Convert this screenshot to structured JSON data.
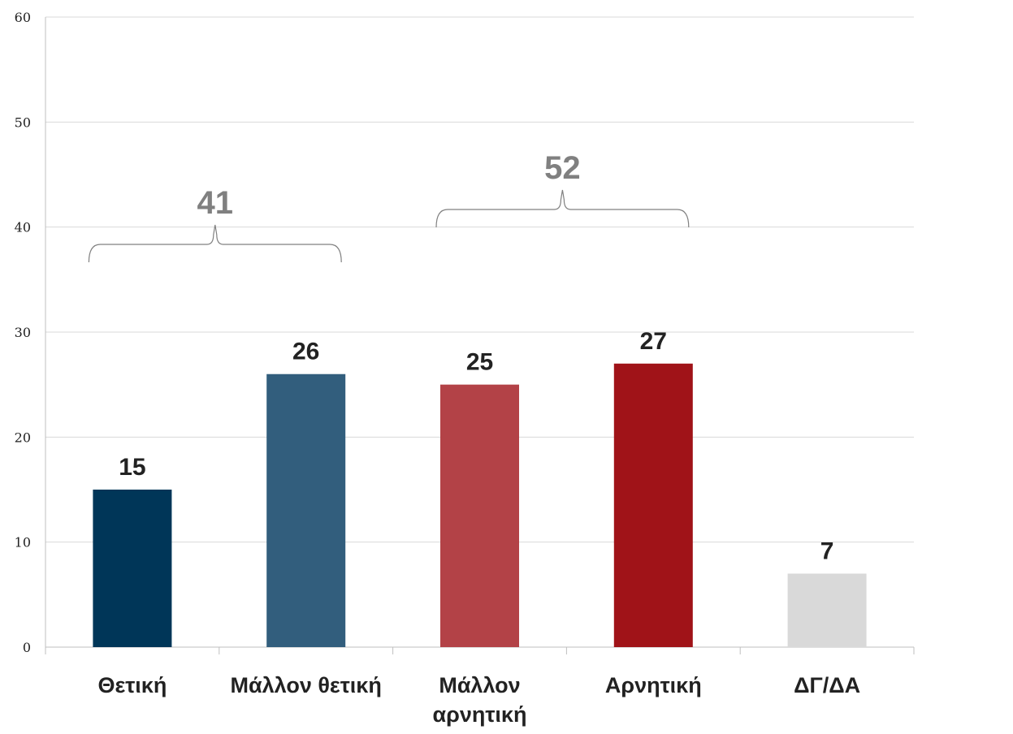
{
  "chart_data": {
    "type": "bar",
    "categories": [
      "Θετική",
      "Μάλλον θετική",
      "Μάλλον αρνητική",
      "Αρνητική",
      "ΔΓ/ΔΑ"
    ],
    "category_lines": [
      [
        "Θετική"
      ],
      [
        "Μάλλον θετική"
      ],
      [
        "Μάλλον",
        "αρνητική"
      ],
      [
        "Αρνητική"
      ],
      [
        "ΔΓ/ΔΑ"
      ]
    ],
    "values": [
      15,
      26,
      25,
      27,
      7
    ],
    "data_labels": [
      "15",
      "26",
      "25",
      "27",
      "7"
    ],
    "colors": [
      "#003658",
      "#325e7d",
      "#b34247",
      "#a01318",
      "#d9d9d9"
    ],
    "ylim": [
      0,
      60
    ],
    "yticks": [
      0,
      10,
      20,
      30,
      40,
      50,
      60
    ],
    "grid": true,
    "title": "",
    "xlabel": "",
    "ylabel": "",
    "groups": [
      {
        "label": "41",
        "from": 0,
        "to": 1
      },
      {
        "label": "52",
        "from": 2,
        "to": 3
      }
    ]
  }
}
